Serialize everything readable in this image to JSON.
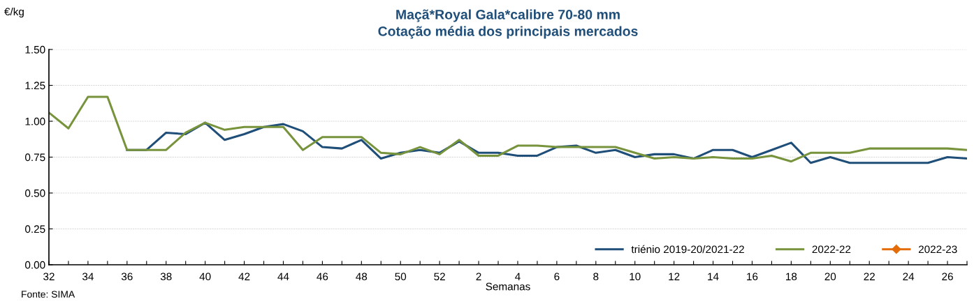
{
  "chart_data": {
    "type": "line",
    "title": "Maçã*Royal Gala*calibre 70-80 mm\nCotação média dos principais mercados",
    "xlabel": "Semanas",
    "ylabel": "€/kg",
    "categories": [
      "32",
      null,
      "34",
      null,
      "36",
      null,
      "38",
      null,
      "40",
      null,
      "42",
      null,
      "44",
      null,
      "46",
      null,
      "48",
      null,
      "50",
      null,
      "52",
      null,
      "2",
      null,
      "4",
      null,
      "6",
      null,
      "8",
      null,
      "10",
      null,
      "12",
      null,
      "14",
      null,
      "16",
      null,
      "18",
      null,
      "20",
      null,
      "22",
      null,
      "24",
      null,
      "26",
      null
    ],
    "series": [
      {
        "name": "triénio 2019-20/2021-22",
        "color": "#1f4e79",
        "values": [
          null,
          null,
          null,
          null,
          0.8,
          0.8,
          0.92,
          0.91,
          0.99,
          0.87,
          0.91,
          0.96,
          0.98,
          0.93,
          0.82,
          0.81,
          0.87,
          0.74,
          0.78,
          0.8,
          0.78,
          0.86,
          0.78,
          0.78,
          0.76,
          0.76,
          0.82,
          0.83,
          0.78,
          0.8,
          0.75,
          0.77,
          0.77,
          0.74,
          0.8,
          0.8,
          0.75,
          0.8,
          0.85,
          0.71,
          0.75,
          0.71,
          0.71,
          0.71,
          0.71,
          0.71,
          0.75,
          0.74
        ]
      },
      {
        "name": "2022-22",
        "color": "#77933c",
        "values": [
          1.06,
          0.95,
          1.17,
          1.17,
          0.8,
          0.8,
          0.8,
          0.92,
          0.99,
          0.94,
          0.96,
          0.96,
          0.96,
          0.8,
          0.89,
          0.89,
          0.89,
          0.78,
          0.77,
          0.82,
          0.77,
          0.87,
          0.76,
          0.76,
          0.83,
          0.83,
          0.82,
          0.82,
          0.82,
          0.82,
          0.78,
          0.74,
          0.75,
          0.74,
          0.75,
          0.74,
          0.74,
          0.76,
          0.72,
          0.78,
          0.78,
          0.78,
          0.81,
          0.81,
          0.81,
          0.81,
          0.81,
          0.8
        ]
      },
      {
        "name": "2022-23",
        "color": "#e36c09",
        "marker": "diamond",
        "values": [
          null,
          null,
          null,
          null,
          null,
          null,
          null,
          null,
          null,
          null,
          null,
          null,
          null,
          null,
          null,
          null,
          null,
          null,
          null,
          null,
          null,
          null,
          null,
          null,
          null,
          null,
          null,
          null,
          null,
          null,
          null,
          null,
          null,
          null,
          null,
          null,
          null,
          null,
          null,
          null,
          null,
          null,
          null,
          null,
          null,
          null,
          null,
          null
        ]
      }
    ],
    "ylim": [
      0,
      1.5
    ],
    "yticks": [
      {
        "value": 0,
        "label": "0.00"
      },
      {
        "value": 0.25,
        "label": "0.25"
      },
      {
        "value": 0.5,
        "label": "0.50"
      },
      {
        "value": 0.75,
        "label": "0.75"
      },
      {
        "value": 1,
        "label": "1.00"
      },
      {
        "value": 1.25,
        "label": "1.25"
      },
      {
        "value": 1.5,
        "label": "1.50"
      }
    ],
    "grid": "y",
    "legend": "bottom right",
    "marker": "none",
    "line_style": "solid",
    "annotations": [
      "Fonte: SIMA"
    ]
  }
}
